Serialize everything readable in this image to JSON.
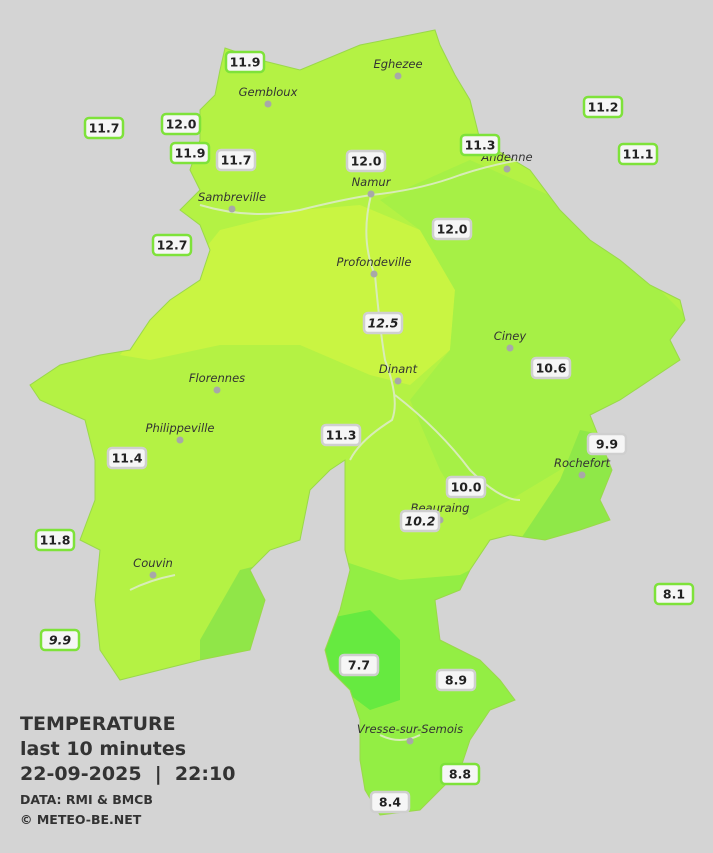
{
  "legend": {
    "title": "TEMPERATURE",
    "period": "last 10 minutes",
    "datetime": "22-09-2025  |  22:10",
    "source": "DATA: RMI & BMCB",
    "credit": "© METEO-BE.NET"
  },
  "cities": [
    "Eghezee",
    "Gembloux",
    "Andenne",
    "Namur",
    "Sambreville",
    "Profondeville",
    "Ciney",
    "Dinant",
    "Florennes",
    "Philippeville",
    "Rochefort",
    "Beauraing",
    "Couvin",
    "Vresse-sur-Semois"
  ],
  "stations": [
    "11.9",
    "11.7",
    "12.0",
    "11.9",
    "11.7",
    "12.0",
    "11.3",
    "11.2",
    "11.1",
    "12.0",
    "12.7",
    "12.5",
    "10.6",
    "11.3",
    "9.9",
    "11.4",
    "10.0",
    "10.2",
    "11.8",
    "8.1",
    "9.9",
    "7.7",
    "8.9",
    "8.8",
    "8.4"
  ]
}
